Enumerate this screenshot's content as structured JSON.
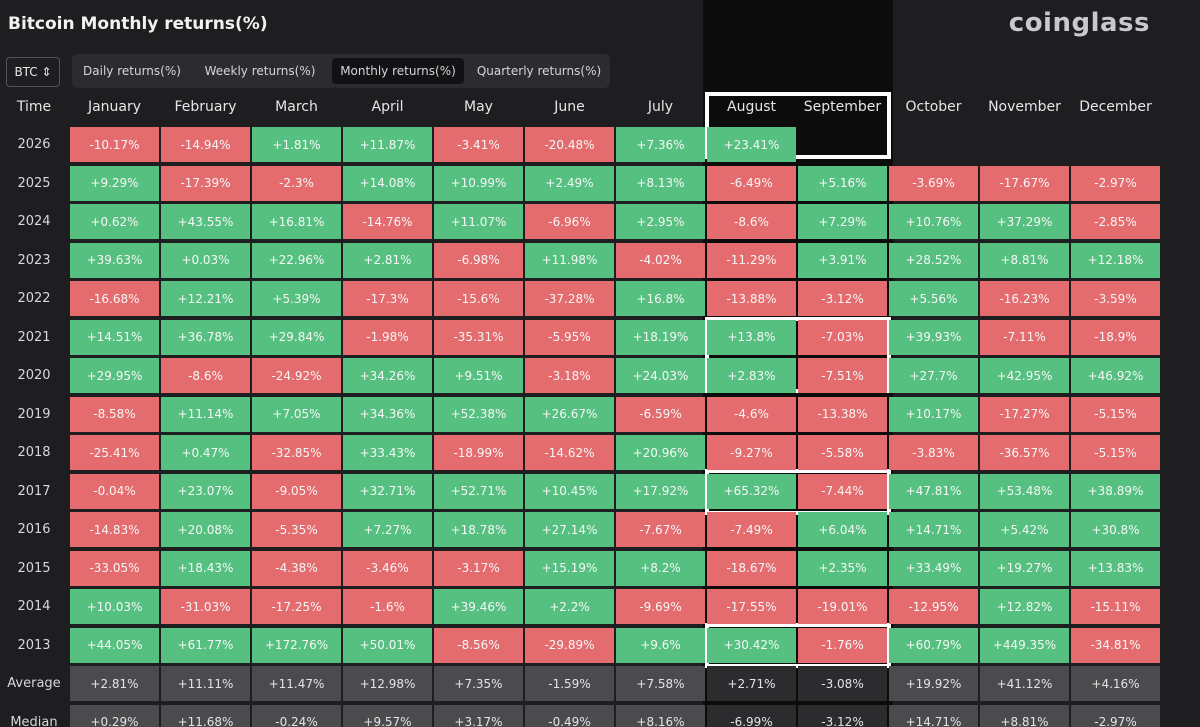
{
  "header": {
    "title": "Bitcoin Monthly returns(%)",
    "logo": "coinglass",
    "selector": "BTC ⇕",
    "tabs": [
      "Daily returns(%)",
      "Weekly returns(%)",
      "Monthly returns(%)",
      "Quarterly returns(%)"
    ],
    "active_tab": 2
  },
  "table": {
    "corner": "Time",
    "columns": [
      "January",
      "February",
      "March",
      "April",
      "May",
      "June",
      "July",
      "August",
      "September",
      "October",
      "November",
      "December"
    ],
    "positive_color": "#55c07f",
    "negative_color": "#e46b6e",
    "summary_color": "#4b4b4e",
    "rows": [
      [
        "2026",
        "-10.17%",
        "-14.94%",
        "+1.81%",
        "+11.87%",
        "-3.41%",
        "-20.48%",
        "+7.36%",
        "+23.41%",
        null,
        null,
        null,
        null
      ],
      [
        "2025",
        "+9.29%",
        "-17.39%",
        "-2.3%",
        "+14.08%",
        "+10.99%",
        "+2.49%",
        "+8.13%",
        "-6.49%",
        "+5.16%",
        "-3.69%",
        "-17.67%",
        "-2.97%"
      ],
      [
        "2024",
        "+0.62%",
        "+43.55%",
        "+16.81%",
        "-14.76%",
        "+11.07%",
        "-6.96%",
        "+2.95%",
        "-8.6%",
        "+7.29%",
        "+10.76%",
        "+37.29%",
        "-2.85%"
      ],
      [
        "2023",
        "+39.63%",
        "+0.03%",
        "+22.96%",
        "+2.81%",
        "-6.98%",
        "+11.98%",
        "-4.02%",
        "-11.29%",
        "+3.91%",
        "+28.52%",
        "+8.81%",
        "+12.18%"
      ],
      [
        "2022",
        "-16.68%",
        "+12.21%",
        "+5.39%",
        "-17.3%",
        "-15.6%",
        "-37.28%",
        "+16.8%",
        "-13.88%",
        "-3.12%",
        "+5.56%",
        "-16.23%",
        "-3.59%"
      ],
      [
        "2021",
        "+14.51%",
        "+36.78%",
        "+29.84%",
        "-1.98%",
        "-35.31%",
        "-5.95%",
        "+18.19%",
        "+13.8%",
        "-7.03%",
        "+39.93%",
        "-7.11%",
        "-18.9%"
      ],
      [
        "2020",
        "+29.95%",
        "-8.6%",
        "-24.92%",
        "+34.26%",
        "+9.51%",
        "-3.18%",
        "+24.03%",
        "+2.83%",
        "-7.51%",
        "+27.7%",
        "+42.95%",
        "+46.92%"
      ],
      [
        "2019",
        "-8.58%",
        "+11.14%",
        "+7.05%",
        "+34.36%",
        "+52.38%",
        "+26.67%",
        "-6.59%",
        "-4.6%",
        "-13.38%",
        "+10.17%",
        "-17.27%",
        "-5.15%"
      ],
      [
        "2018",
        "-25.41%",
        "+0.47%",
        "-32.85%",
        "+33.43%",
        "-18.99%",
        "-14.62%",
        "+20.96%",
        "-9.27%",
        "-5.58%",
        "-3.83%",
        "-36.57%",
        "-5.15%"
      ],
      [
        "2017",
        "-0.04%",
        "+23.07%",
        "-9.05%",
        "+32.71%",
        "+52.71%",
        "+10.45%",
        "+17.92%",
        "+65.32%",
        "-7.44%",
        "+47.81%",
        "+53.48%",
        "+38.89%"
      ],
      [
        "2016",
        "-14.83%",
        "+20.08%",
        "-5.35%",
        "+7.27%",
        "+18.78%",
        "+27.14%",
        "-7.67%",
        "-7.49%",
        "+6.04%",
        "+14.71%",
        "+5.42%",
        "+30.8%"
      ],
      [
        "2015",
        "-33.05%",
        "+18.43%",
        "-4.38%",
        "-3.46%",
        "-3.17%",
        "+15.19%",
        "+8.2%",
        "-18.67%",
        "+2.35%",
        "+33.49%",
        "+19.27%",
        "+13.83%"
      ],
      [
        "2014",
        "+10.03%",
        "-31.03%",
        "-17.25%",
        "-1.6%",
        "+39.46%",
        "+2.2%",
        "-9.69%",
        "-17.55%",
        "-19.01%",
        "-12.95%",
        "+12.82%",
        "-15.11%"
      ],
      [
        "2013",
        "+44.05%",
        "+61.77%",
        "+172.76%",
        "+50.01%",
        "-8.56%",
        "-29.89%",
        "+9.6%",
        "+30.42%",
        "-1.76%",
        "+60.79%",
        "+449.35%",
        "-34.81%"
      ]
    ],
    "summary": [
      [
        "Average",
        "+2.81%",
        "+11.11%",
        "+11.47%",
        "+12.98%",
        "+7.35%",
        "-1.59%",
        "+7.58%",
        "+2.71%",
        "-3.08%",
        "+19.92%",
        "+41.12%",
        "+4.16%"
      ],
      [
        "Median",
        "+0.29%",
        "+11.68%",
        "-0.24%",
        "+9.57%",
        "+3.17%",
        "-0.49%",
        "+8.16%",
        "-6.99%",
        "-3.12%",
        "+14.71%",
        "+8.81%",
        "-2.97%"
      ]
    ]
  }
}
